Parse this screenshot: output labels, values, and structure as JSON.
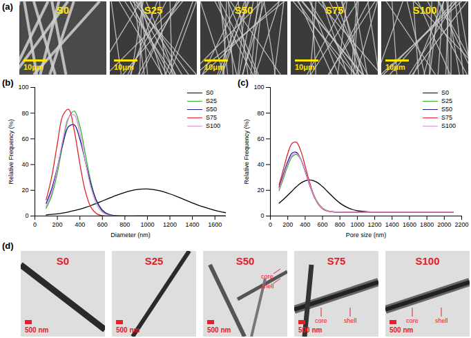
{
  "panels": {
    "a": {
      "label": "(a)",
      "images": [
        {
          "label": "S0",
          "scale_bar": "10μm"
        },
        {
          "label": "S25",
          "scale_bar": "10μm"
        },
        {
          "label": "S50",
          "scale_bar": "10μm"
        },
        {
          "label": "S75",
          "scale_bar": "10μm"
        },
        {
          "label": "S100",
          "scale_bar": "10μm"
        }
      ]
    },
    "d": {
      "label": "(d)",
      "images": [
        {
          "label": "S0",
          "scale_bar": "500 nm"
        },
        {
          "label": "S25",
          "scale_bar": "500 nm"
        },
        {
          "label": "S50",
          "scale_bar": "500 nm",
          "annotations": [
            "core",
            "shell"
          ]
        },
        {
          "label": "S75",
          "scale_bar": "500 nm",
          "annotations": [
            "core",
            "shell"
          ]
        },
        {
          "label": "S100",
          "scale_bar": "500 nm",
          "annotations": [
            "core",
            "shell"
          ]
        }
      ]
    }
  },
  "chart_data": [
    {
      "type": "line",
      "title": "(b)",
      "x_label": "Diameter (nm)",
      "y_label": "Relative Frequency (%)",
      "xlim": [
        0,
        1700
      ],
      "xticks": [
        0,
        200,
        400,
        600,
        800,
        1000,
        1200,
        1400,
        1600
      ],
      "ylim": [
        0,
        100
      ],
      "yticks": [
        0,
        20,
        40,
        60,
        80,
        100
      ],
      "grid": false,
      "legend": "top-right",
      "x": [
        100,
        150,
        200,
        250,
        300,
        350,
        400,
        450,
        500,
        550,
        600,
        650,
        700,
        800,
        900,
        1000,
        1100,
        1200,
        1300,
        1400,
        1500,
        1600,
        1700
      ],
      "series": [
        {
          "name": "S0",
          "color": "#000000",
          "values": [
            0.9,
            1.3,
            1.7,
            2.4,
            3.2,
            4.2,
            5.3,
            6.7,
            8.2,
            9.9,
            11.7,
            13.5,
            15.3,
            18.4,
            20.5,
            21.0,
            19.8,
            17.2,
            13.8,
            10.2,
            7.0,
            4.4,
            2.5
          ]
        },
        {
          "name": "S25",
          "color": "#2db52d",
          "values": [
            6.0,
            16.0,
            33.7,
            56.8,
            76.3,
            81.6,
            69.6,
            47.4,
            25.7,
            11.1,
            3.8,
            1.0,
            0.2,
            0,
            0,
            0,
            0,
            0,
            0,
            0,
            0,
            0,
            0
          ]
        },
        {
          "name": "S50",
          "color": "#1c1c8f",
          "values": [
            9.7,
            21.2,
            38.0,
            56.5,
            69.6,
            70.9,
            59.8,
            41.8,
            24.1,
            11.5,
            4.6,
            1.5,
            0.5,
            0,
            0,
            0,
            0,
            0,
            0,
            0,
            0,
            0,
            0
          ]
        },
        {
          "name": "S75",
          "color": "#e4202a",
          "values": [
            12.6,
            30.6,
            56.3,
            78.5,
            83.0,
            66.5,
            40.4,
            18.6,
            6.5,
            1.7,
            0.3,
            0.0,
            0.0,
            0,
            0,
            0,
            0,
            0,
            0,
            0,
            0,
            0,
            0
          ]
        },
        {
          "name": "S100",
          "color": "#dd8fdd",
          "values": [
            7.3,
            18.4,
            37.2,
            59.8,
            76.8,
            78.6,
            64.0,
            41.6,
            21.6,
            8.9,
            2.9,
            0.8,
            0.2,
            0,
            0,
            0,
            0,
            0,
            0,
            0,
            0,
            0,
            0
          ]
        }
      ]
    },
    {
      "type": "line",
      "title": "(c)",
      "x_label": "Pore size (nm)",
      "y_label": "Relative Frequency (%)",
      "xlim": [
        0,
        2200
      ],
      "xticks": [
        0,
        200,
        400,
        600,
        800,
        1000,
        1200,
        1400,
        1600,
        1800,
        2000,
        2200
      ],
      "ylim": [
        0,
        100
      ],
      "yticks": [
        0,
        20,
        40,
        60,
        80,
        100
      ],
      "grid": false,
      "legend": "top-right",
      "x": [
        100,
        150,
        200,
        250,
        300,
        350,
        400,
        450,
        500,
        550,
        600,
        650,
        700,
        750,
        800,
        900,
        1000,
        1100,
        1200,
        1300,
        1400,
        1500,
        1600,
        1700,
        1800,
        1900,
        2000,
        2100
      ],
      "series": [
        {
          "name": "S0",
          "color": "#000000",
          "values": [
            10.0,
            12.9,
            16.1,
            19.5,
            22.8,
            25.6,
            27.4,
            28.0,
            27.4,
            25.6,
            22.8,
            19.5,
            16.1,
            12.9,
            10.0,
            6.1,
            4.1,
            3.4,
            3.1,
            3.0,
            3.0,
            3.0,
            3.0,
            3.0,
            3.0,
            3.0,
            3.0,
            3.0
          ]
        },
        {
          "name": "S25",
          "color": "#2db52d",
          "values": [
            19.7,
            29.3,
            39.0,
            46.1,
            47.9,
            43.8,
            35.3,
            25.3,
            16.4,
            10.1,
            6.2,
            4.3,
            3.5,
            3.1,
            3.0,
            3.0,
            3.0,
            3.0,
            3.0,
            3.0,
            3.0,
            3.0,
            3.0,
            3.0,
            3.0,
            3.0,
            3.0,
            3.0
          ]
        },
        {
          "name": "S50",
          "color": "#1c1c8f",
          "values": [
            22.3,
            32.6,
            42.4,
            48.9,
            49.5,
            44.1,
            34.7,
            24.3,
            15.5,
            9.4,
            5.8,
            4.1,
            3.4,
            3.1,
            3.0,
            3.0,
            3.0,
            3.0,
            3.0,
            3.0,
            3.0,
            3.0,
            3.0,
            3.0,
            3.0,
            3.0,
            3.0,
            3.0
          ]
        },
        {
          "name": "S75",
          "color": "#e4202a",
          "values": [
            24.1,
            36.4,
            48.5,
            56.6,
            57.3,
            50.6,
            38.9,
            26.4,
            16.1,
            9.4,
            5.7,
            3.9,
            3.3,
            3.1,
            3.0,
            3.0,
            3.0,
            3.0,
            3.0,
            3.0,
            3.0,
            3.0,
            3.0,
            3.0,
            3.0,
            3.0,
            3.0,
            3.0
          ]
        },
        {
          "name": "S100",
          "color": "#dd8fdd",
          "values": [
            21.0,
            30.9,
            40.7,
            47.5,
            48.7,
            43.9,
            35.0,
            24.8,
            15.9,
            9.7,
            6.0,
            4.2,
            3.4,
            3.1,
            3.0,
            3.0,
            3.0,
            3.0,
            3.0,
            3.0,
            3.0,
            3.0,
            3.0,
            3.0,
            3.0,
            3.0,
            3.0,
            3.0
          ]
        }
      ]
    }
  ]
}
